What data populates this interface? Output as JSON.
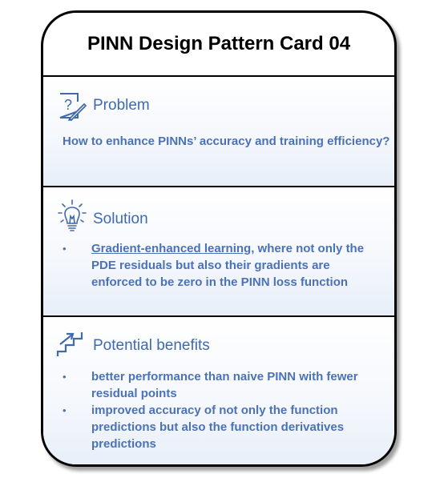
{
  "card": {
    "title": "PINN Design Pattern Card 04",
    "problem": {
      "icon": "question-document-icon",
      "heading": "Problem",
      "text": "How to enhance PINNs’ accuracy and training efficiency?"
    },
    "solution": {
      "icon": "lightbulb-icon",
      "heading": "Solution",
      "bullet_char": "•",
      "items": [
        {
          "highlight": "Gradient-enhanced learning",
          "text": ", where not only the PDE residuals but also their gradients are enforced to be zero in the PINN loss function"
        }
      ]
    },
    "benefits": {
      "icon": "stairs-arrow-icon",
      "heading": "Potential benefits",
      "bullet_char": "•",
      "items": [
        "better performance than naive PINN with fewer residual points",
        "improved accuracy of not only the function predictions but also the function derivatives predictions"
      ]
    },
    "colors": {
      "heading": "#3f69b0",
      "body": "#4b72b5",
      "border": "#000000"
    }
  }
}
